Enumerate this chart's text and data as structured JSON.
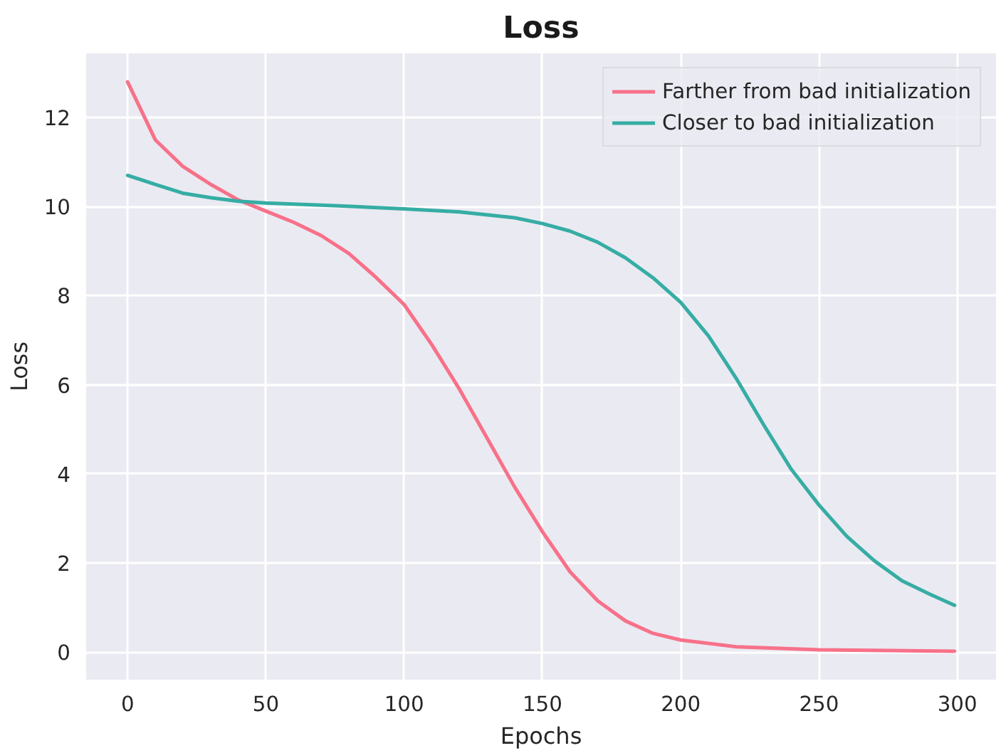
{
  "chart_data": {
    "type": "line",
    "title": "Loss",
    "xlabel": "Epochs",
    "ylabel": "Loss",
    "xlim": [
      -15,
      314
    ],
    "ylim": [
      -0.62,
      13.44
    ],
    "xticks": [
      0,
      50,
      100,
      150,
      200,
      250,
      300
    ],
    "yticks": [
      0,
      2,
      4,
      6,
      8,
      10,
      12
    ],
    "grid": true,
    "legend": "top right",
    "marker": "none",
    "line_style": "solid",
    "series": [
      {
        "name": "Farther from bad initialization",
        "color": "#f77189",
        "x": [
          0,
          10,
          20,
          30,
          40,
          50,
          60,
          70,
          80,
          90,
          100,
          110,
          120,
          130,
          140,
          150,
          160,
          170,
          180,
          190,
          200,
          220,
          250,
          299
        ],
        "values": [
          12.8,
          11.5,
          10.9,
          10.5,
          10.15,
          9.9,
          9.65,
          9.35,
          8.95,
          8.4,
          7.8,
          6.9,
          5.9,
          4.8,
          3.7,
          2.7,
          1.8,
          1.15,
          0.7,
          0.42,
          0.27,
          0.12,
          0.05,
          0.02
        ]
      },
      {
        "name": "Closer to bad initialization",
        "color": "#36ada4",
        "x": [
          0,
          10,
          20,
          30,
          40,
          50,
          75,
          100,
          120,
          140,
          150,
          160,
          170,
          180,
          190,
          200,
          210,
          220,
          230,
          240,
          250,
          260,
          270,
          280,
          290,
          299
        ],
        "values": [
          10.7,
          10.5,
          10.3,
          10.2,
          10.12,
          10.08,
          10.02,
          9.95,
          9.88,
          9.75,
          9.62,
          9.45,
          9.2,
          8.85,
          8.4,
          7.85,
          7.1,
          6.15,
          5.1,
          4.1,
          3.3,
          2.6,
          2.05,
          1.6,
          1.3,
          1.05
        ]
      }
    ]
  }
}
